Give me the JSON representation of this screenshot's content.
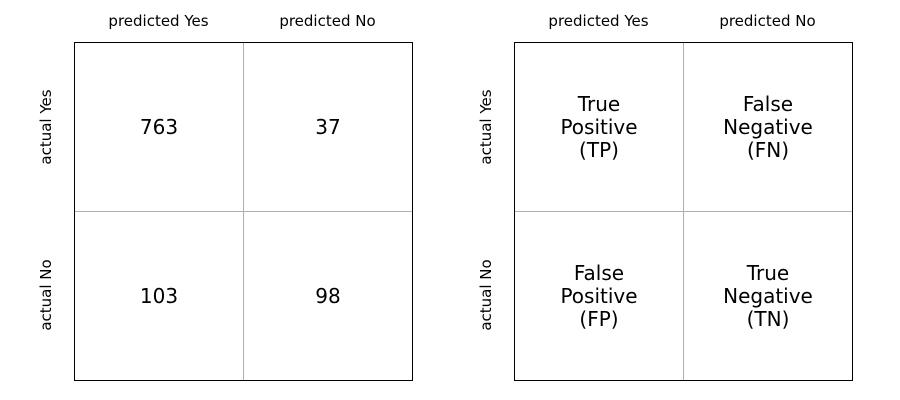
{
  "left_matrix": {
    "col_labels": [
      "predicted Yes",
      "predicted No"
    ],
    "row_labels": [
      "actual Yes",
      "actual No"
    ],
    "cells": [
      [
        "763",
        "37"
      ],
      [
        "103",
        "98"
      ]
    ]
  },
  "right_matrix": {
    "col_labels": [
      "predicted Yes",
      "predicted No"
    ],
    "row_labels": [
      "actual Yes",
      "actual No"
    ],
    "cells": [
      [
        "True\nPositive\n(TP)",
        "False\nNegative\n(FN)"
      ],
      [
        "False\nPositive\n(FP)",
        "True\nNegative\n(TN)"
      ]
    ]
  }
}
